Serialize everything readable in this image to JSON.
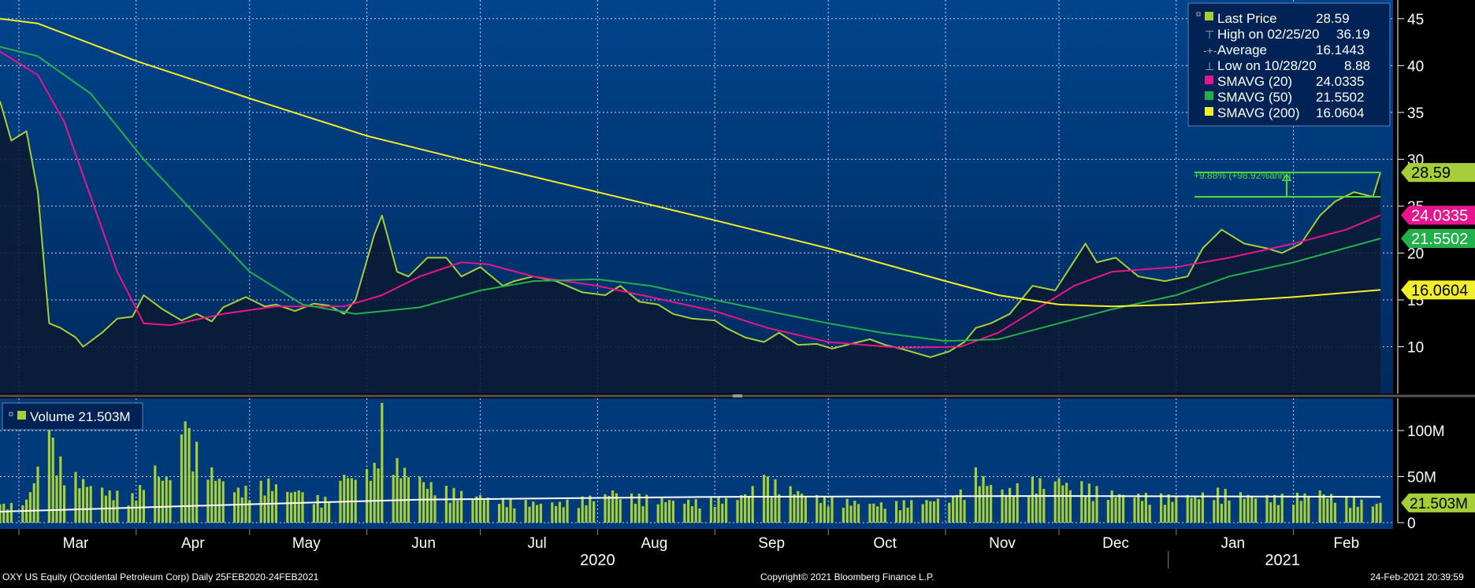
{
  "legend": {
    "last_price_label": "Last Price",
    "last_price_value": "28.59",
    "high_label": "High on 02/25/20",
    "high_value": "36.19",
    "average_label": "Average",
    "average_value": "16.1443",
    "low_label": "Low on 10/28/20",
    "low_value": "8.88",
    "sma20_label": "SMAVG (20)",
    "sma20_value": "24.0335",
    "sma50_label": "SMAVG (50)",
    "sma50_value": "21.5502",
    "sma200_label": "SMAVG (200)",
    "sma200_value": "16.0604"
  },
  "price_tags": {
    "last": "28.59",
    "sma20": "24.0335",
    "sma50": "21.5502",
    "sma200": "16.0604",
    "volume": "21.503M"
  },
  "annotation": "+9.88% (+98.92%ann.)",
  "volume_legend": "Volume 21.503M",
  "footer": {
    "left": "OXY US Equity (Occidental Petroleum Corp)  Daily 25FEB2020-24FEB2021",
    "center": "Copyright© 2021 Bloomberg Finance L.P.",
    "right": "24-Feb-2021 20:39:59"
  },
  "colors": {
    "background": "#003a7a",
    "price": "#a6ce39",
    "sma20": "#e8168c",
    "sma50": "#22b04a",
    "sma200": "#f2ee2a",
    "volume_bar": "#a6ce39",
    "volume_avg": "#ffffff",
    "text": "#ffffff"
  },
  "chart_data": [
    {
      "type": "line",
      "title": "",
      "x_tick_labels": [
        "Mar",
        "Apr",
        "May",
        "Jun",
        "Jul",
        "Aug",
        "Sep",
        "Oct",
        "Nov",
        "Dec",
        "Jan",
        "Feb"
      ],
      "year_labels": [
        "2020",
        "2021"
      ],
      "y_ticks": [
        10,
        15,
        20,
        25,
        30,
        35,
        40,
        45
      ],
      "ylim": [
        5,
        47
      ],
      "grid": true,
      "series": [
        {
          "name": "Last Price",
          "color": "#a6ce39",
          "points": [
            [
              "2020-02-25",
              36.19
            ],
            [
              "2020-02-28",
              32.0
            ],
            [
              "2020-03-03",
              33.0
            ],
            [
              "2020-03-06",
              26.5
            ],
            [
              "2020-03-09",
              12.5
            ],
            [
              "2020-03-12",
              12.0
            ],
            [
              "2020-03-16",
              11.0
            ],
            [
              "2020-03-18",
              10.0
            ],
            [
              "2020-03-23",
              11.5
            ],
            [
              "2020-03-27",
              13.0
            ],
            [
              "2020-03-31",
              13.2
            ],
            [
              "2020-04-03",
              15.5
            ],
            [
              "2020-04-08",
              14.0
            ],
            [
              "2020-04-13",
              12.8
            ],
            [
              "2020-04-17",
              13.5
            ],
            [
              "2020-04-21",
              12.7
            ],
            [
              "2020-04-24",
              14.2
            ],
            [
              "2020-04-30",
              15.3
            ],
            [
              "2020-05-05",
              14.3
            ],
            [
              "2020-05-08",
              14.5
            ],
            [
              "2020-05-13",
              13.8
            ],
            [
              "2020-05-18",
              14.6
            ],
            [
              "2020-05-22",
              14.4
            ],
            [
              "2020-05-26",
              13.5
            ],
            [
              "2020-05-29",
              15.0
            ],
            [
              "2020-06-03",
              22.0
            ],
            [
              "2020-06-05",
              24.0
            ],
            [
              "2020-06-09",
              18.0
            ],
            [
              "2020-06-12",
              17.5
            ],
            [
              "2020-06-17",
              19.5
            ],
            [
              "2020-06-22",
              19.5
            ],
            [
              "2020-06-26",
              17.5
            ],
            [
              "2020-07-01",
              18.5
            ],
            [
              "2020-07-07",
              16.5
            ],
            [
              "2020-07-10",
              17.0
            ],
            [
              "2020-07-15",
              17.5
            ],
            [
              "2020-07-21",
              17.0
            ],
            [
              "2020-07-28",
              15.8
            ],
            [
              "2020-08-03",
              15.5
            ],
            [
              "2020-08-07",
              16.5
            ],
            [
              "2020-08-12",
              14.8
            ],
            [
              "2020-08-17",
              14.5
            ],
            [
              "2020-08-21",
              13.5
            ],
            [
              "2020-08-26",
              13.0
            ],
            [
              "2020-09-01",
              12.8
            ],
            [
              "2020-09-04",
              12.0
            ],
            [
              "2020-09-09",
              11.0
            ],
            [
              "2020-09-14",
              10.5
            ],
            [
              "2020-09-18",
              11.5
            ],
            [
              "2020-09-23",
              10.2
            ],
            [
              "2020-09-28",
              10.3
            ],
            [
              "2020-10-02",
              9.8
            ],
            [
              "2020-10-07",
              10.3
            ],
            [
              "2020-10-12",
              10.8
            ],
            [
              "2020-10-16",
              10.2
            ],
            [
              "2020-10-21",
              9.7
            ],
            [
              "2020-10-28",
              8.88
            ],
            [
              "2020-11-02",
              9.5
            ],
            [
              "2020-11-06",
              10.5
            ],
            [
              "2020-11-09",
              12.0
            ],
            [
              "2020-11-13",
              12.5
            ],
            [
              "2020-11-18",
              13.5
            ],
            [
              "2020-11-24",
              16.5
            ],
            [
              "2020-11-30",
              16.0
            ],
            [
              "2020-12-04",
              18.5
            ],
            [
              "2020-12-08",
              21.0
            ],
            [
              "2020-12-11",
              19.0
            ],
            [
              "2020-12-16",
              19.5
            ],
            [
              "2020-12-22",
              17.5
            ],
            [
              "2020-12-29",
              17.0
            ],
            [
              "2021-01-04",
              17.5
            ],
            [
              "2021-01-08",
              20.5
            ],
            [
              "2021-01-13",
              22.5
            ],
            [
              "2021-01-19",
              21.0
            ],
            [
              "2021-01-25",
              20.5
            ],
            [
              "2021-01-29",
              20.0
            ],
            [
              "2021-02-03",
              21.0
            ],
            [
              "2021-02-08",
              24.0
            ],
            [
              "2021-02-12",
              25.5
            ],
            [
              "2021-02-17",
              26.5
            ],
            [
              "2021-02-22",
              26.0
            ],
            [
              "2021-02-24",
              28.59
            ]
          ]
        },
        {
          "name": "SMAVG (20)",
          "color": "#e8168c",
          "points": [
            [
              "2020-02-25",
              41.5
            ],
            [
              "2020-03-06",
              39.0
            ],
            [
              "2020-03-13",
              34.0
            ],
            [
              "2020-03-20",
              26.0
            ],
            [
              "2020-03-27",
              18.0
            ],
            [
              "2020-04-03",
              12.5
            ],
            [
              "2020-04-10",
              12.3
            ],
            [
              "2020-04-24",
              13.5
            ],
            [
              "2020-05-08",
              14.3
            ],
            [
              "2020-05-26",
              14.3
            ],
            [
              "2020-06-05",
              15.5
            ],
            [
              "2020-06-15",
              17.5
            ],
            [
              "2020-06-26",
              19.0
            ],
            [
              "2020-07-03",
              18.8
            ],
            [
              "2020-07-15",
              17.5
            ],
            [
              "2020-08-01",
              16.5
            ],
            [
              "2020-08-15",
              15.3
            ],
            [
              "2020-09-01",
              13.8
            ],
            [
              "2020-09-15",
              12.0
            ],
            [
              "2020-10-01",
              10.5
            ],
            [
              "2020-10-20",
              9.9
            ],
            [
              "2020-11-05",
              10.0
            ],
            [
              "2020-11-15",
              11.5
            ],
            [
              "2020-11-25",
              14.0
            ],
            [
              "2020-12-05",
              16.5
            ],
            [
              "2020-12-15",
              18.0
            ],
            [
              "2021-01-01",
              18.5
            ],
            [
              "2021-01-15",
              19.5
            ],
            [
              "2021-02-01",
              21.0
            ],
            [
              "2021-02-15",
              22.5
            ],
            [
              "2021-02-24",
              24.0335
            ]
          ]
        },
        {
          "name": "SMAVG (50)",
          "color": "#22b04a",
          "points": [
            [
              "2020-02-25",
              42.0
            ],
            [
              "2020-03-06",
              41.0
            ],
            [
              "2020-03-20",
              37.0
            ],
            [
              "2020-04-03",
              30.0
            ],
            [
              "2020-04-17",
              24.0
            ],
            [
              "2020-05-01",
              18.0
            ],
            [
              "2020-05-15",
              14.5
            ],
            [
              "2020-05-29",
              13.5
            ],
            [
              "2020-06-15",
              14.2
            ],
            [
              "2020-07-01",
              16.0
            ],
            [
              "2020-07-15",
              17.0
            ],
            [
              "2020-08-01",
              17.2
            ],
            [
              "2020-08-15",
              16.5
            ],
            [
              "2020-09-01",
              15.0
            ],
            [
              "2020-09-15",
              13.8
            ],
            [
              "2020-10-01",
              12.5
            ],
            [
              "2020-10-15",
              11.5
            ],
            [
              "2020-11-01",
              10.6
            ],
            [
              "2020-11-15",
              10.8
            ],
            [
              "2020-12-01",
              12.5
            ],
            [
              "2020-12-15",
              14.0
            ],
            [
              "2021-01-01",
              15.5
            ],
            [
              "2021-01-15",
              17.5
            ],
            [
              "2021-02-01",
              19.0
            ],
            [
              "2021-02-24",
              21.5502
            ]
          ]
        },
        {
          "name": "SMAVG (200)",
          "color": "#f2ee2a",
          "points": [
            [
              "2020-02-25",
              45.0
            ],
            [
              "2020-03-06",
              44.5
            ],
            [
              "2020-04-01",
              40.5
            ],
            [
              "2020-05-01",
              36.5
            ],
            [
              "2020-06-01",
              32.5
            ],
            [
              "2020-07-01",
              29.5
            ],
            [
              "2020-08-01",
              26.5
            ],
            [
              "2020-09-01",
              23.5
            ],
            [
              "2020-10-01",
              20.5
            ],
            [
              "2020-11-01",
              17.0
            ],
            [
              "2020-11-15",
              15.5
            ],
            [
              "2020-12-01",
              14.5
            ],
            [
              "2020-12-15",
              14.3
            ],
            [
              "2021-01-01",
              14.5
            ],
            [
              "2021-02-01",
              15.3
            ],
            [
              "2021-02-24",
              16.0604
            ]
          ]
        }
      ],
      "reference_lines": {
        "last_price_level": 28.59,
        "period_start_level": 26.0
      }
    },
    {
      "type": "bar",
      "title": "",
      "y_ticks": [
        "0",
        "50M",
        "100M"
      ],
      "ylim": [
        0,
        135
      ],
      "unit": "M",
      "series": [
        {
          "name": "Volume",
          "color": "#a6ce39",
          "points": [
            [
              "2020-02-25",
              20
            ],
            [
              "2020-03-03",
              25
            ],
            [
              "2020-03-09",
              105
            ],
            [
              "2020-03-12",
              72
            ],
            [
              "2020-03-16",
              55
            ],
            [
              "2020-03-23",
              38
            ],
            [
              "2020-03-31",
              32
            ],
            [
              "2020-04-06",
              62
            ],
            [
              "2020-04-09",
              50
            ],
            [
              "2020-04-14",
              110
            ],
            [
              "2020-04-21",
              60
            ],
            [
              "2020-04-28",
              38
            ],
            [
              "2020-05-06",
              48
            ],
            [
              "2020-05-14",
              35
            ],
            [
              "2020-05-21",
              28
            ],
            [
              "2020-05-26",
              52
            ],
            [
              "2020-06-03",
              65
            ],
            [
              "2020-06-05",
              130
            ],
            [
              "2020-06-09",
              70
            ],
            [
              "2020-06-15",
              50
            ],
            [
              "2020-06-22",
              40
            ],
            [
              "2020-07-01",
              30
            ],
            [
              "2020-07-20",
              22
            ],
            [
              "2020-08-05",
              35
            ],
            [
              "2020-08-25",
              25
            ],
            [
              "2020-09-08",
              30
            ],
            [
              "2020-09-14",
              52
            ],
            [
              "2020-09-28",
              30
            ],
            [
              "2020-10-15",
              22
            ],
            [
              "2020-11-04",
              30
            ],
            [
              "2020-11-09",
              60
            ],
            [
              "2020-11-16",
              36
            ],
            [
              "2020-11-24",
              50
            ],
            [
              "2020-12-01",
              48
            ],
            [
              "2020-12-07",
              45
            ],
            [
              "2020-12-15",
              35
            ],
            [
              "2021-01-04",
              30
            ],
            [
              "2021-01-12",
              38
            ],
            [
              "2021-01-25",
              30
            ],
            [
              "2021-02-08",
              35
            ],
            [
              "2021-02-24",
              21.503
            ]
          ]
        },
        {
          "name": "Volume Average",
          "color": "#ffffff",
          "points": [
            [
              "2020-02-25",
              12
            ],
            [
              "2020-05-01",
              20
            ],
            [
              "2020-06-15",
              25
            ],
            [
              "2020-09-01",
              28
            ],
            [
              "2020-12-01",
              29
            ],
            [
              "2021-02-24",
              28
            ]
          ]
        }
      ]
    }
  ]
}
